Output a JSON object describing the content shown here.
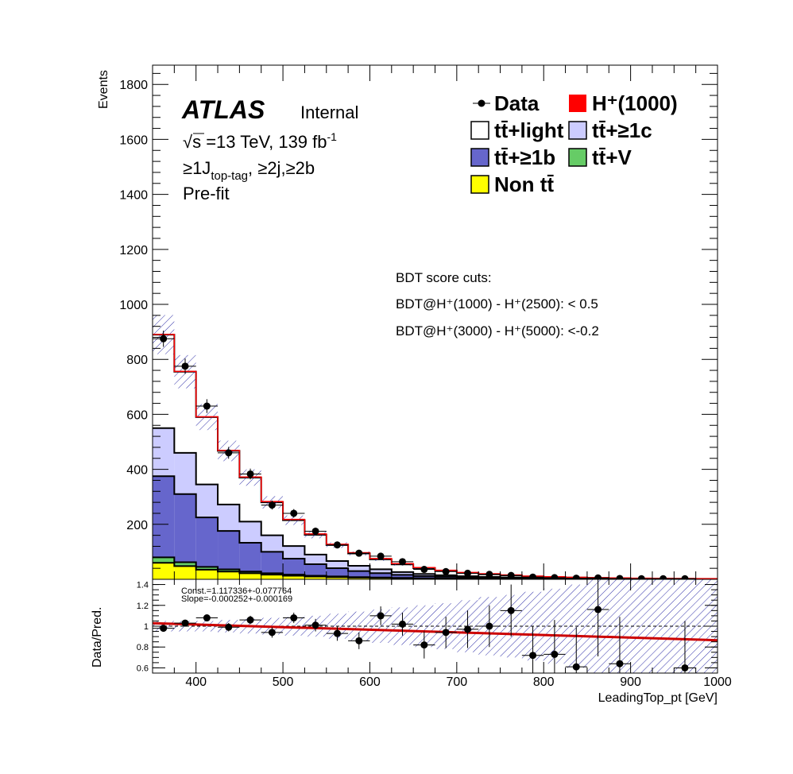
{
  "atlas": {
    "label": "ATLAS",
    "status": "Internal"
  },
  "info": {
    "energy_prefix": "√s",
    "energy": " =13 TeV, 139 fb",
    "lumi_exp": "-1",
    "region_a": "≥1J",
    "region_sub": "top-tag",
    "region_b": ", ≥2j,≥2b",
    "fit": "Pre-fit"
  },
  "cuts": {
    "header": "BDT score cuts:",
    "line1": "BDT@H⁺(1000) - H⁺(2500): < 0.5",
    "line2": "BDT@H⁺(3000) - H⁺(5000): <-0.2"
  },
  "legend": [
    {
      "label": "Data",
      "kind": "marker",
      "color": "#000000"
    },
    {
      "label": "H⁺(1000)",
      "kind": "box",
      "color": "#ff0000"
    },
    {
      "label": "tt̄+light",
      "kind": "box",
      "color": "#ffffff"
    },
    {
      "label": "tt̄+≥1c",
      "kind": "box",
      "color": "#ccccff"
    },
    {
      "label": "tt̄+≥1b",
      "kind": "box",
      "color": "#6666cc"
    },
    {
      "label": "tt̄+V",
      "kind": "box",
      "color": "#66cc66"
    },
    {
      "label": "Non tt̄",
      "kind": "box",
      "color": "#ffff00"
    }
  ],
  "fit_text": {
    "const": "Const.=1.117336+-0.077764",
    "slope": "Slope=-0.000252+-0.000169"
  },
  "chart_data": [
    {
      "type": "bar",
      "stacked": true,
      "xlabel": "LeadingTop_pt [GeV]",
      "ylabel": "Events",
      "xlim": [
        350,
        1000
      ],
      "ylim": [
        0,
        1870
      ],
      "yticks": [
        200,
        400,
        600,
        800,
        1000,
        1200,
        1400,
        1600,
        1800
      ],
      "bin_edges": [
        350,
        375,
        400,
        425,
        450,
        475,
        500,
        525,
        550,
        575,
        600,
        625,
        650,
        675,
        700,
        725,
        750,
        775,
        800,
        825,
        850,
        875,
        900,
        925,
        950,
        975,
        1000
      ],
      "series": [
        {
          "name": "Non tt̄",
          "color": "#ffff00",
          "values": [
            60,
            48,
            35,
            28,
            22,
            17,
            13,
            10,
            8,
            6,
            5,
            4,
            3,
            2.5,
            2,
            1.6,
            1.3,
            1,
            0.8,
            0.6,
            0.5,
            0.4,
            0.3,
            0.25,
            0.2,
            0.15
          ]
        },
        {
          "name": "tt̄+V",
          "color": "#66cc66",
          "values": [
            20,
            14,
            10,
            8,
            6,
            5,
            4,
            3,
            2.5,
            2,
            1.5,
            1.2,
            1,
            0.8,
            0.6,
            0.5,
            0.4,
            0.3,
            0.25,
            0.2,
            0.15,
            0.12,
            0.1,
            0.08,
            0.06,
            0.05
          ]
        },
        {
          "name": "tt̄+≥1b",
          "color": "#6666cc",
          "values": [
            295,
            248,
            180,
            140,
            105,
            78,
            58,
            42,
            30,
            22,
            16,
            11,
            8,
            6,
            4.5,
            3.5,
            2.6,
            2,
            1.5,
            1.1,
            0.9,
            0.7,
            0.5,
            0.4,
            0.3,
            0.25
          ]
        },
        {
          "name": "tt̄+≥1c",
          "color": "#ccccff",
          "values": [
            175,
            150,
            120,
            96,
            77,
            60,
            46,
            35,
            26,
            19,
            14,
            10,
            7.5,
            5.5,
            4,
            3,
            2.2,
            1.7,
            1.3,
            1,
            0.8,
            0.6,
            0.45,
            0.35,
            0.25,
            0.2
          ]
        },
        {
          "name": "tt̄+light",
          "color": "#ffffff",
          "values": [
            340,
            295,
            245,
            195,
            160,
            120,
            94,
            72,
            58,
            45,
            36,
            28,
            21,
            16,
            12,
            9.5,
            7.5,
            5.5,
            4.5,
            3.5,
            2.8,
            2.2,
            1.7,
            1.3,
            1,
            0.8
          ]
        }
      ],
      "signal": {
        "name": "H⁺(1000)",
        "color": "#ff0000",
        "values": [
          1,
          1,
          1,
          2,
          2,
          3,
          3,
          3,
          3,
          3,
          3,
          3,
          2,
          2,
          2,
          2,
          2,
          1,
          1,
          1,
          1,
          1,
          1,
          1,
          1,
          1
        ]
      },
      "uncertainty_band": {
        "rel": 0.08
      },
      "data": {
        "name": "Data",
        "x": [
          362.5,
          387.5,
          412.5,
          437.5,
          462.5,
          487.5,
          512.5,
          537.5,
          562.5,
          587.5,
          612.5,
          637.5,
          662.5,
          687.5,
          712.5,
          737.5,
          762.5,
          787.5,
          812.5,
          837.5,
          862.5,
          887.5,
          912.5,
          937.5,
          962.5
        ],
        "y": [
          875,
          775,
          630,
          460,
          383,
          270,
          240,
          175,
          125,
          95,
          84,
          64,
          36,
          28,
          22,
          18,
          14,
          8,
          6,
          4,
          5,
          3,
          2,
          2,
          2
        ]
      }
    },
    {
      "type": "scatter",
      "ylabel": "Data/Pred.",
      "xlim": [
        350,
        1000
      ],
      "ylim": [
        0.55,
        1.45
      ],
      "yticks": [
        0.6,
        0.8,
        1,
        1.2,
        1.4
      ],
      "xticks": [
        400,
        500,
        600,
        700,
        800,
        900,
        1000
      ],
      "points": {
        "x": [
          362.5,
          387.5,
          412.5,
          437.5,
          462.5,
          487.5,
          512.5,
          537.5,
          562.5,
          587.5,
          612.5,
          637.5,
          662.5,
          687.5,
          712.5,
          737.5,
          762.5,
          787.5,
          812.5,
          837.5,
          862.5,
          887.5,
          962.5
        ],
        "y": [
          0.98,
          1.03,
          1.08,
          0.99,
          1.06,
          0.94,
          1.08,
          1.01,
          0.93,
          0.86,
          1.1,
          1.02,
          0.82,
          0.94,
          0.97,
          1.0,
          1.15,
          0.72,
          0.73,
          0.61,
          1.16,
          0.64,
          0.6
        ],
        "err": [
          0.03,
          0.03,
          0.03,
          0.04,
          0.04,
          0.05,
          0.05,
          0.06,
          0.07,
          0.08,
          0.09,
          0.11,
          0.13,
          0.15,
          0.18,
          0.2,
          0.25,
          0.28,
          0.33,
          0.38,
          0.45,
          0.45,
          0.45
        ]
      },
      "fit_line": {
        "x": [
          350,
          1000
        ],
        "y": [
          1.029,
          0.865
        ],
        "color": "#cc0000"
      }
    }
  ]
}
